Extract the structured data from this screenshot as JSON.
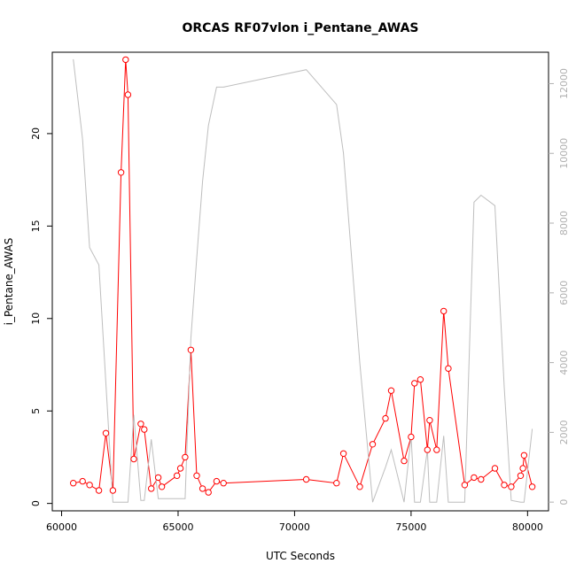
{
  "chart_data": {
    "type": "line",
    "title": "ORCAS RF07vlon i_Pentane_AWAS",
    "xlabel": "UTC Seconds",
    "ylabel": "i_Pentane_AWAS",
    "xlim": [
      59600,
      80900
    ],
    "ylim": [
      -0.4,
      24.4
    ],
    "y2lim": [
      -250,
      12900
    ],
    "x_ticks": [
      60000,
      65000,
      70000,
      75000,
      80000
    ],
    "y_ticks": [
      0,
      5,
      10,
      15,
      20
    ],
    "y2_ticks": [
      0,
      2000,
      4000,
      6000,
      8000,
      10000,
      12000
    ],
    "grid": false,
    "colors": {
      "primary": "#ff0000",
      "secondary": "#bebebe",
      "axis": "#000000",
      "secondary_axis": "#b0b0b0"
    },
    "series": [
      {
        "axis": "left",
        "style": "line+points",
        "x": [
          60500,
          60900,
          61200,
          61600,
          61900,
          62200,
          62550,
          62750,
          62850,
          63100,
          63400,
          63550,
          63850,
          64150,
          64300,
          64950,
          65100,
          65300,
          65550,
          65800,
          66050,
          66300,
          66650,
          66950,
          70500,
          71800,
          72100,
          72800,
          73350,
          73900,
          74150,
          74700,
          75000,
          75150,
          75400,
          75700,
          75800,
          76100,
          76400,
          76600,
          77300,
          77700,
          78000,
          78600,
          79000,
          79300,
          79700,
          79800,
          79850,
          80200
        ],
        "y": [
          1.1,
          1.2,
          1.0,
          0.7,
          3.8,
          0.7,
          17.9,
          24.0,
          22.1,
          2.4,
          4.3,
          4.0,
          0.8,
          1.4,
          0.9,
          1.5,
          1.9,
          2.5,
          8.3,
          1.5,
          0.8,
          0.6,
          1.2,
          1.1,
          1.3,
          1.1,
          2.7,
          0.9,
          3.2,
          4.6,
          6.1,
          2.3,
          3.6,
          6.5,
          6.7,
          2.9,
          4.5,
          2.9,
          10.4,
          7.3,
          1.0,
          1.4,
          1.3,
          1.9,
          1.0,
          0.9,
          1.5,
          1.9,
          2.6,
          0.9
        ]
      },
      {
        "axis": "right",
        "style": "line",
        "x": [
          60500,
          60900,
          61200,
          61600,
          61900,
          62200,
          62550,
          62750,
          62850,
          63100,
          63400,
          63550,
          63850,
          64150,
          64300,
          64950,
          65100,
          65300,
          65550,
          65800,
          66050,
          66300,
          66650,
          66950,
          70500,
          71800,
          72100,
          72800,
          73350,
          73900,
          74150,
          74700,
          75000,
          75150,
          75400,
          75700,
          75800,
          76100,
          76400,
          76600,
          77300,
          77700,
          78000,
          78600,
          79000,
          79300,
          79700,
          79800,
          79850,
          80200
        ],
        "y": [
          12700,
          10400,
          7300,
          6800,
          3400,
          0,
          0,
          0,
          0,
          2500,
          50,
          50,
          1800,
          100,
          100,
          100,
          100,
          100,
          4700,
          7000,
          9200,
          10800,
          11900,
          11900,
          12400,
          11400,
          10000,
          4000,
          0,
          1000,
          1500,
          0,
          1900,
          0,
          0,
          1500,
          0,
          0,
          1900,
          0,
          0,
          8600,
          8800,
          8500,
          3300,
          50,
          0,
          0,
          0,
          2100
        ]
      }
    ]
  }
}
